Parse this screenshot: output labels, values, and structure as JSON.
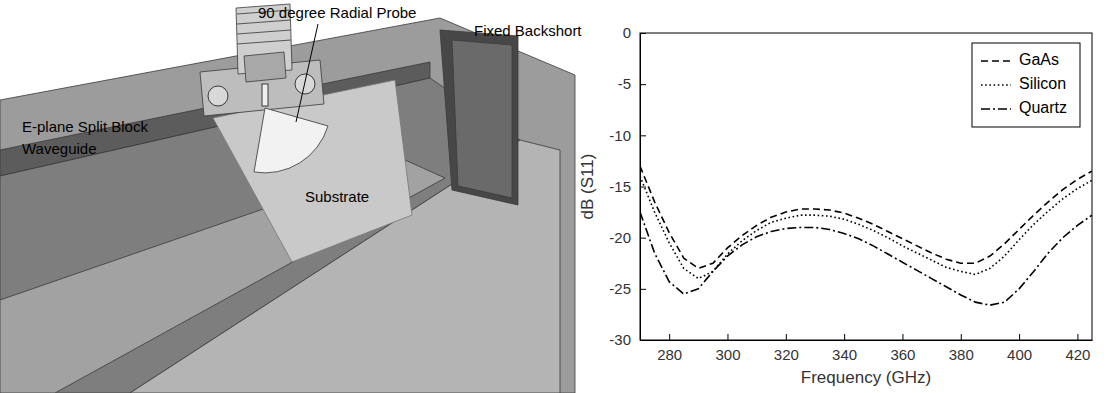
{
  "chart_data": {
    "type": "line",
    "x_label": "Frequency (GHz)",
    "y_label": "dB (S11)",
    "x": [
      270,
      275,
      280,
      285,
      290,
      295,
      300,
      305,
      310,
      315,
      320,
      325,
      330,
      335,
      340,
      345,
      350,
      355,
      360,
      365,
      370,
      375,
      380,
      385,
      390,
      395,
      400,
      405,
      410,
      415,
      420,
      425
    ],
    "xlim": [
      270,
      425
    ],
    "xticks": [
      280,
      300,
      320,
      340,
      360,
      380,
      400,
      420
    ],
    "ylim": [
      -30,
      0
    ],
    "yticks": [
      -30,
      -25,
      -20,
      -15,
      -10,
      -5,
      0
    ],
    "legend": "upper right",
    "series": [
      {
        "name": "GaAs",
        "color": "#000000",
        "line_style": "dashed",
        "values": [
          -13.0,
          -16.5,
          -19.5,
          -22.0,
          -23.0,
          -22.5,
          -21.0,
          -19.8,
          -18.8,
          -18.0,
          -17.5,
          -17.2,
          -17.2,
          -17.3,
          -17.6,
          -18.1,
          -18.7,
          -19.4,
          -20.1,
          -20.8,
          -21.5,
          -22.1,
          -22.5,
          -22.5,
          -21.8,
          -20.6,
          -19.2,
          -17.8,
          -16.5,
          -15.3,
          -14.3,
          -13.5
        ]
      },
      {
        "name": "Silicon",
        "color": "#000000",
        "line_style": "dotted",
        "values": [
          -14.0,
          -17.5,
          -20.5,
          -23.0,
          -24.0,
          -23.3,
          -21.6,
          -20.3,
          -19.3,
          -18.5,
          -18.1,
          -17.8,
          -17.8,
          -17.9,
          -18.2,
          -18.7,
          -19.3,
          -20.0,
          -20.8,
          -21.5,
          -22.2,
          -22.9,
          -23.3,
          -23.6,
          -23.0,
          -21.8,
          -20.2,
          -18.7,
          -17.4,
          -16.2,
          -15.2,
          -14.4
        ]
      },
      {
        "name": "Quartz",
        "color": "#000000",
        "line_style": "dashdot",
        "values": [
          -17.5,
          -21.5,
          -24.3,
          -25.5,
          -25.0,
          -23.3,
          -21.8,
          -20.7,
          -19.9,
          -19.4,
          -19.1,
          -19.0,
          -19.0,
          -19.2,
          -19.6,
          -20.1,
          -20.8,
          -21.6,
          -22.4,
          -23.2,
          -24.0,
          -24.8,
          -25.6,
          -26.3,
          -26.6,
          -26.3,
          -25.0,
          -23.3,
          -21.5,
          -20.0,
          -18.8,
          -17.8
        ]
      }
    ]
  },
  "diagram": {
    "probe_label": "90 degree Radial Probe",
    "backshort_label": "Fixed Backshort",
    "waveguide_label": [
      "E-plane Split Block",
      "Waveguide"
    ],
    "substrate_label": "Substrate"
  }
}
